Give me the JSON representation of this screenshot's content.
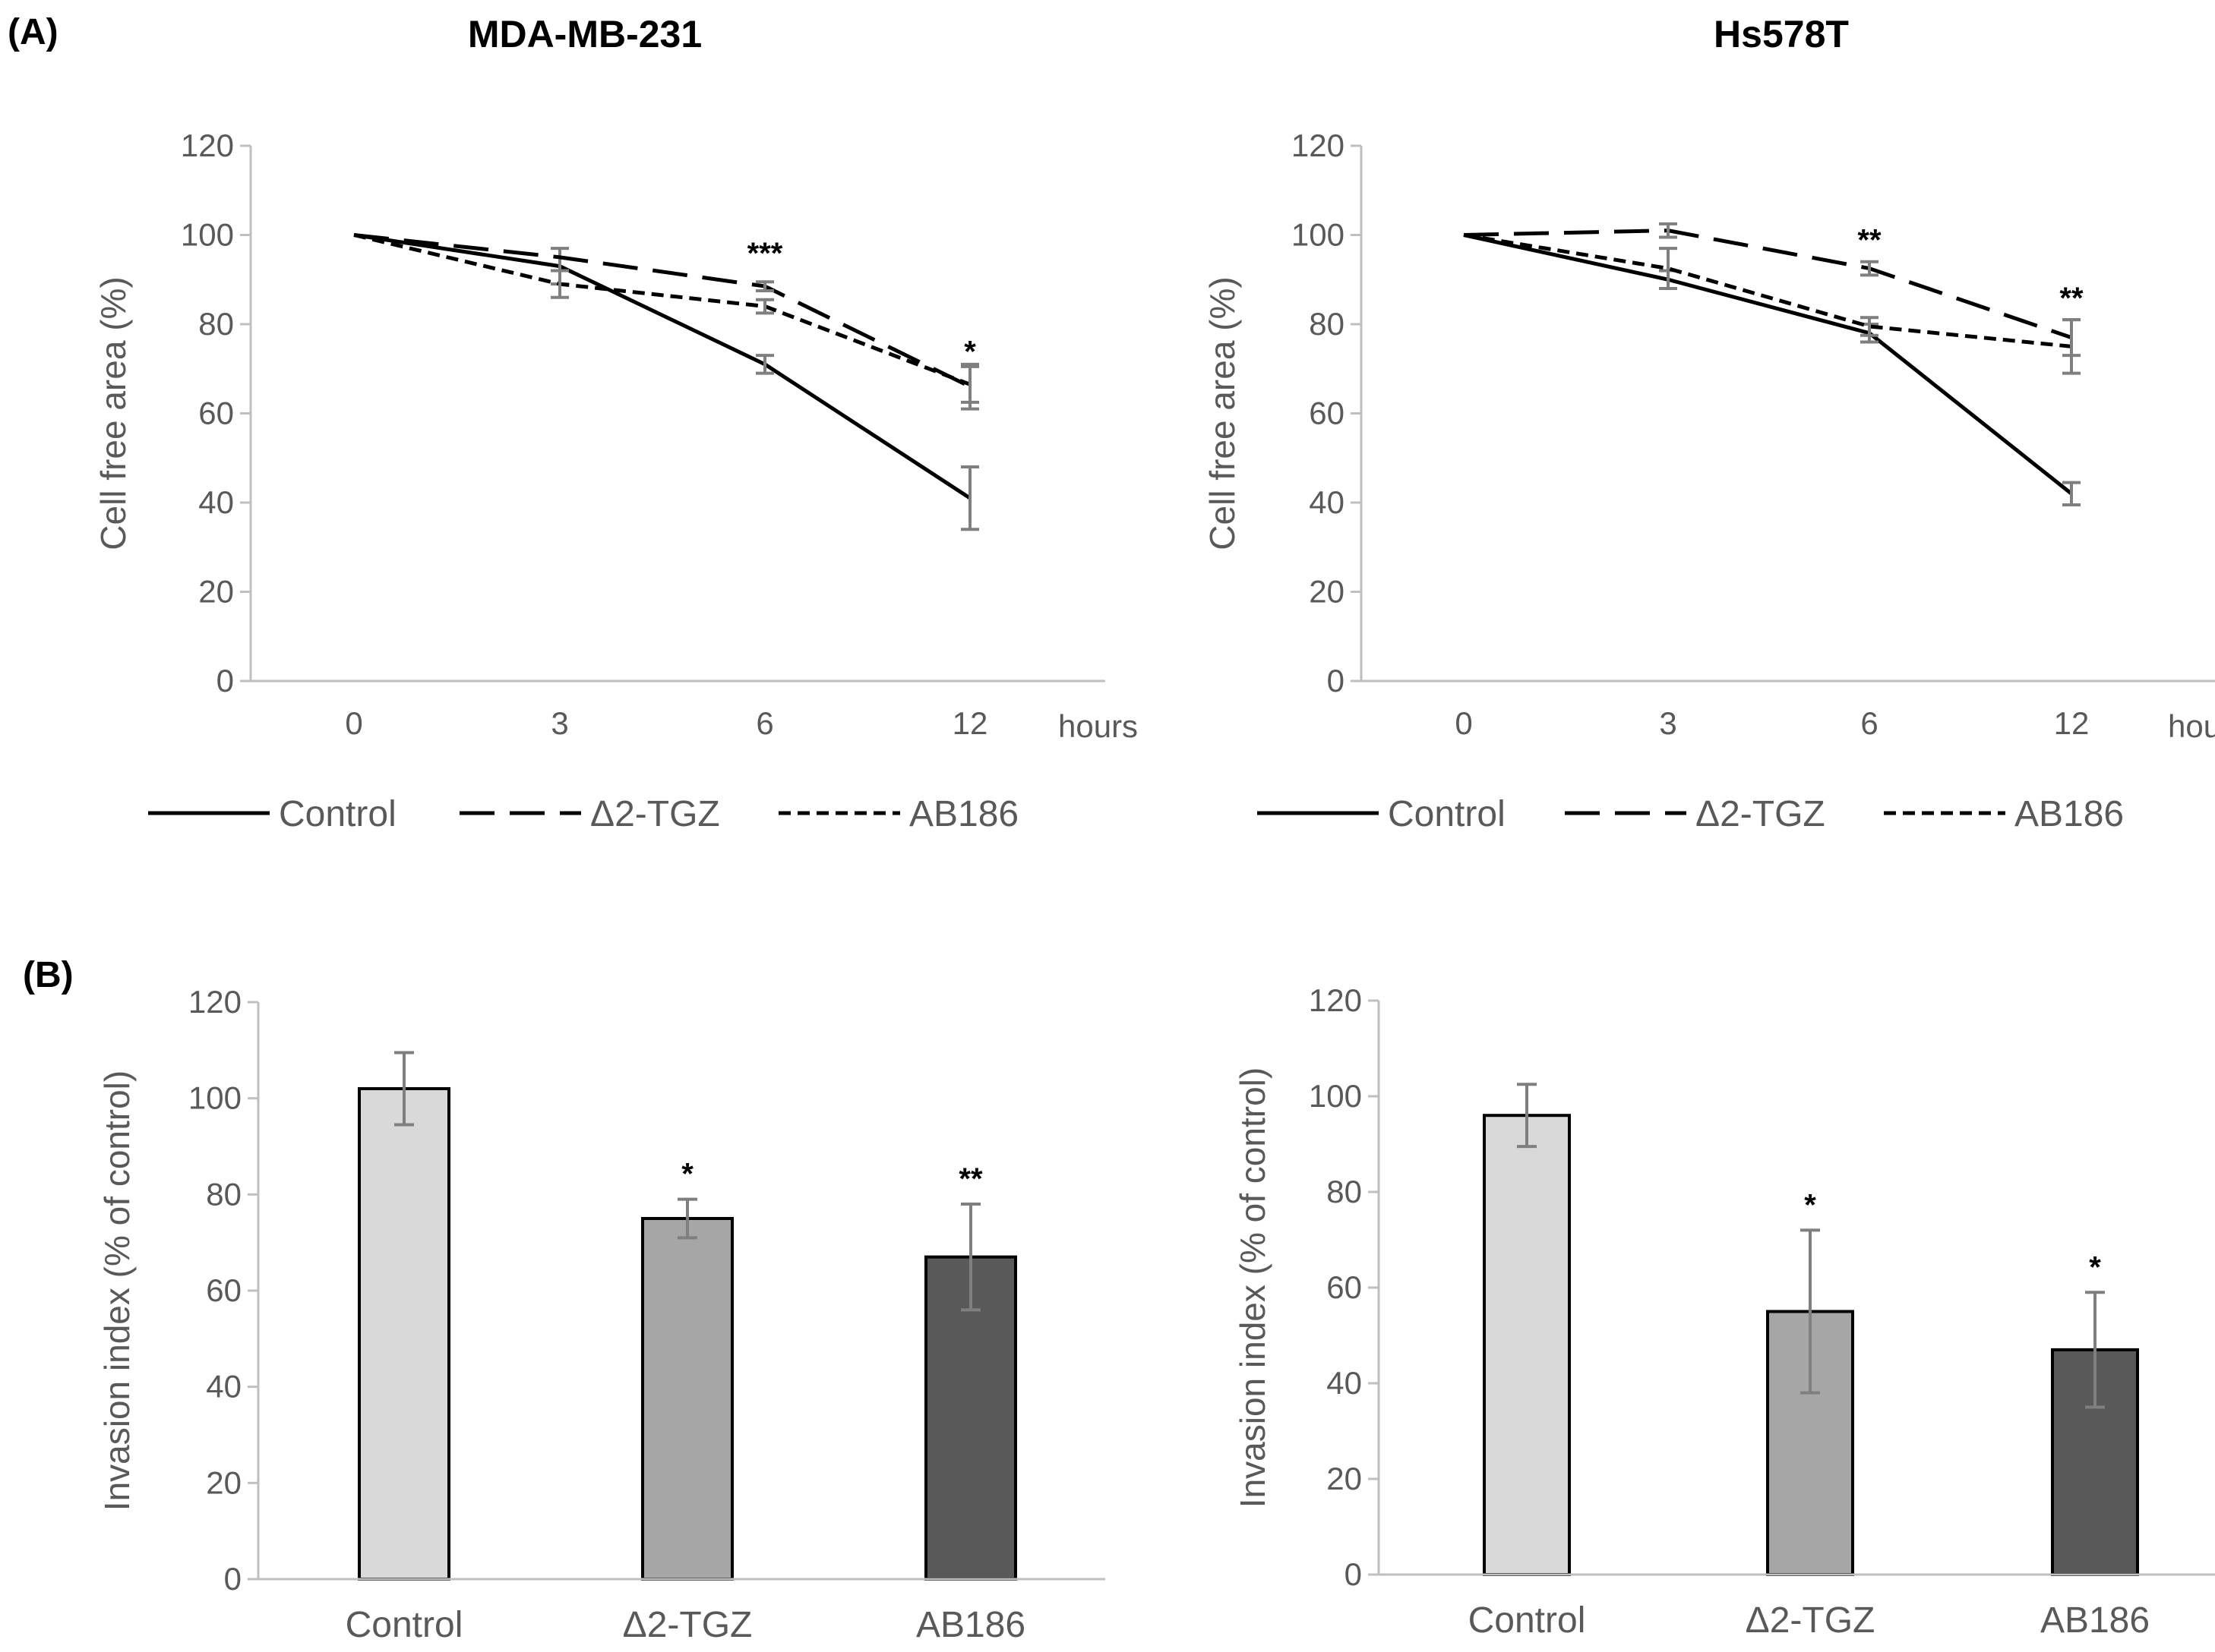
{
  "figure": {
    "panel_a_label": "(A)",
    "panel_b_label": "(B)"
  },
  "chart_data": [
    {
      "type": "line",
      "title": "MDA-MB-231",
      "xlabel": "hours",
      "ylabel": "Cell free area (%)",
      "categories": [
        "0",
        "3",
        "6",
        "12"
      ],
      "ylim": [
        0,
        120
      ],
      "yticks": [
        0,
        20,
        40,
        60,
        80,
        100,
        120
      ],
      "grid": false,
      "legend_position": "bottom",
      "series": [
        {
          "name": "Control",
          "style": "solid",
          "values": [
            100,
            93,
            71,
            41
          ],
          "errors": [
            0,
            4,
            2,
            7
          ]
        },
        {
          "name": "Δ2-TGZ",
          "style": "long-dash",
          "values": [
            100,
            95,
            88.5,
            66
          ],
          "errors": [
            0,
            0,
            1,
            5
          ]
        },
        {
          "name": "AB186",
          "style": "short-dash",
          "values": [
            100,
            89,
            84,
            66.5
          ],
          "errors": [
            0,
            3,
            1.5,
            4
          ]
        }
      ],
      "annotations": [
        {
          "text": "***",
          "x": "6",
          "y": 96
        },
        {
          "text": "*",
          "x": "12",
          "y": 74
        }
      ]
    },
    {
      "type": "line",
      "title": "Hs578T",
      "xlabel": "hours",
      "ylabel": "Cell free area (%)",
      "categories": [
        "0",
        "3",
        "6",
        "12"
      ],
      "ylim": [
        0,
        120
      ],
      "yticks": [
        0,
        20,
        40,
        60,
        80,
        100,
        120
      ],
      "grid": false,
      "legend_position": "bottom",
      "series": [
        {
          "name": "Control",
          "style": "solid",
          "values": [
            100,
            90,
            78,
            42
          ],
          "errors": [
            0,
            2,
            2,
            2.5
          ]
        },
        {
          "name": "Δ2-TGZ",
          "style": "long-dash",
          "values": [
            100,
            101,
            92.5,
            77
          ],
          "errors": [
            0,
            1.5,
            1.5,
            4
          ]
        },
        {
          "name": "AB186",
          "style": "short-dash",
          "values": [
            100,
            92.5,
            79.5,
            75
          ],
          "errors": [
            0,
            4.5,
            2,
            6
          ]
        }
      ],
      "annotations": [
        {
          "text": "**",
          "x": "6",
          "y": 99
        },
        {
          "text": "**",
          "x": "12",
          "y": 86
        }
      ]
    },
    {
      "type": "bar",
      "title": "",
      "xlabel": "",
      "ylabel": "Invasion index (% of control)",
      "categories": [
        "Control",
        "Δ2-TGZ",
        "AB186"
      ],
      "ylim": [
        0,
        120
      ],
      "yticks": [
        0,
        20,
        40,
        60,
        80,
        100,
        120
      ],
      "grid": false,
      "colors": [
        "#d9d9d9",
        "#a6a6a6",
        "#595959"
      ],
      "values": [
        102,
        75,
        67
      ],
      "errors": [
        7.5,
        4,
        11
      ],
      "annotations": [
        "",
        "*",
        "**"
      ]
    },
    {
      "type": "bar",
      "title": "",
      "xlabel": "",
      "ylabel": "Invasion index (% of control)",
      "categories": [
        "Control",
        "Δ2-TGZ",
        "AB186"
      ],
      "ylim": [
        0,
        120
      ],
      "yticks": [
        0,
        20,
        40,
        60,
        80,
        100,
        120
      ],
      "grid": false,
      "colors": [
        "#d9d9d9",
        "#a6a6a6",
        "#595959"
      ],
      "values": [
        96,
        55,
        47
      ],
      "errors": [
        6.5,
        17,
        12
      ],
      "annotations": [
        "",
        "*",
        "*"
      ]
    }
  ]
}
